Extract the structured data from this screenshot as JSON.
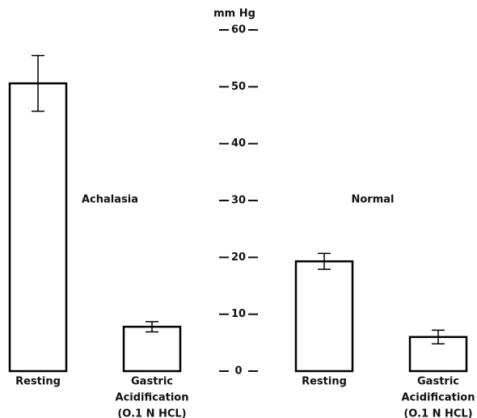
{
  "chart_data": {
    "type": "bar",
    "y_label": "mm Hg",
    "groups": [
      "Achalasia",
      "Normal"
    ],
    "categories": [
      [
        "Resting"
      ],
      [
        "Gastric",
        "Acidification",
        "(O.1 N HCL)"
      ],
      [
        "Resting"
      ],
      [
        "Gastric",
        "Acidification",
        "(O.1 N HCL)"
      ]
    ],
    "values": [
      50.6,
      7.8,
      19.3,
      6.0
    ],
    "errors": [
      4.9,
      0.9,
      1.4,
      1.2
    ],
    "color": "#000000",
    "ylim": [
      0,
      60
    ],
    "yticks": [
      0,
      10,
      20,
      30,
      40,
      50,
      60
    ]
  }
}
